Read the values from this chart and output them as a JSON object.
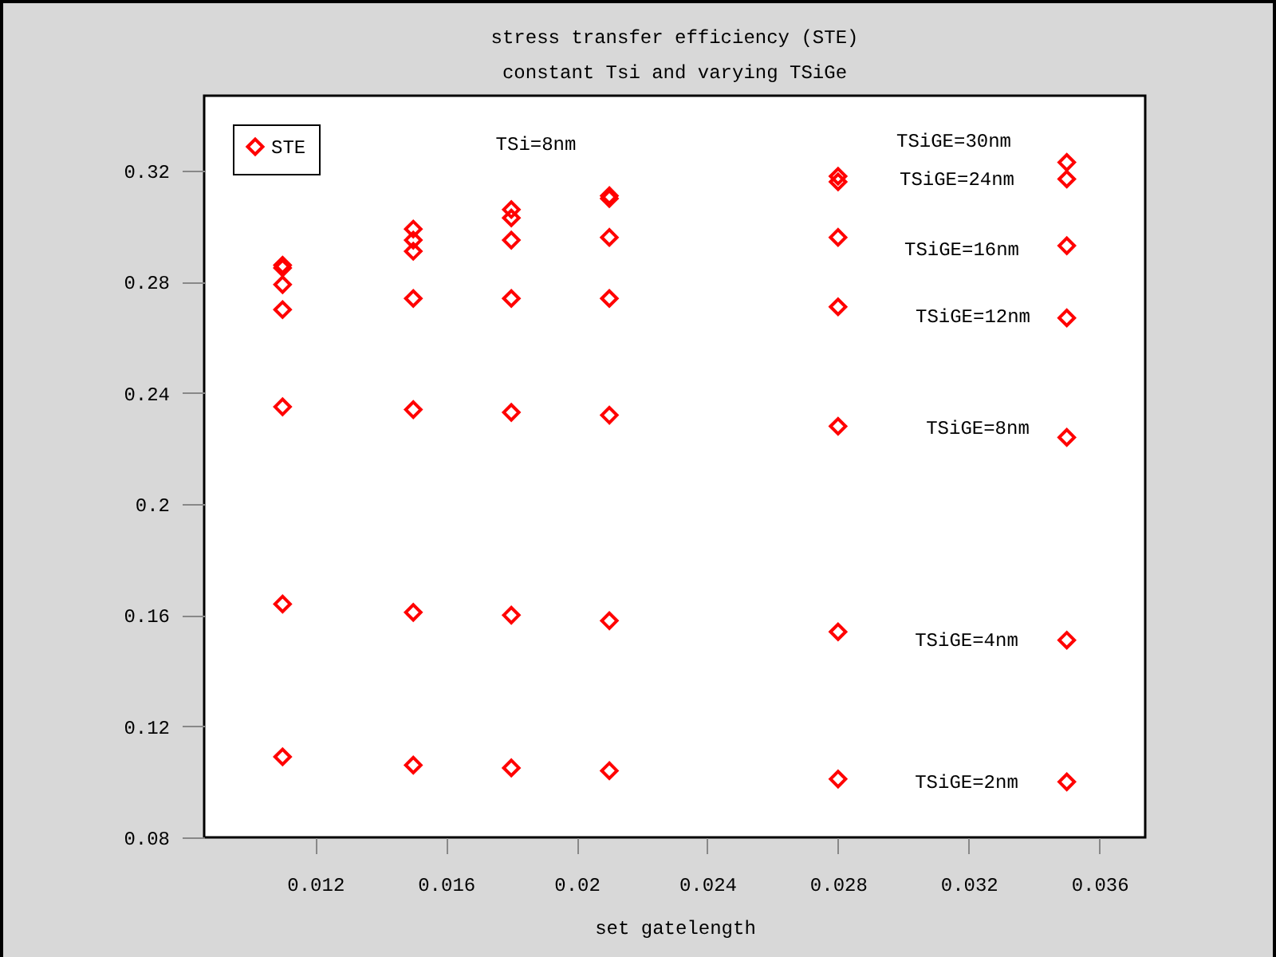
{
  "chart_data": {
    "type": "scatter",
    "title": "stress transfer  efficiency (STE)",
    "subtitle": "constant Tsi and varying TSiGe",
    "xlabel": "set gatelength",
    "x": [
      0.011,
      0.011,
      0.011,
      0.011,
      0.011,
      0.011,
      0.011,
      0.015,
      0.015,
      0.015,
      0.015,
      0.015,
      0.015,
      0.015,
      0.018,
      0.018,
      0.018,
      0.018,
      0.018,
      0.018,
      0.018,
      0.021,
      0.021,
      0.021,
      0.021,
      0.021,
      0.021,
      0.021,
      0.028,
      0.028,
      0.028,
      0.028,
      0.028,
      0.028,
      0.028,
      0.035,
      0.035,
      0.035,
      0.035,
      0.035,
      0.035,
      0.035
    ],
    "series": [
      {
        "name": "STE",
        "color": "#ff0000",
        "values": [
          0.286,
          0.285,
          0.279,
          0.27,
          0.235,
          0.164,
          0.109,
          0.299,
          0.295,
          0.291,
          0.274,
          0.234,
          0.161,
          0.106,
          0.306,
          0.303,
          0.295,
          0.274,
          0.233,
          0.16,
          0.105,
          0.311,
          0.31,
          0.296,
          0.274,
          0.232,
          0.158,
          0.104,
          0.318,
          0.316,
          0.296,
          0.271,
          0.228,
          0.154,
          0.101,
          0.323,
          0.317,
          0.293,
          0.267,
          0.224,
          0.151,
          0.1
        ]
      }
    ],
    "xlim": [
      0.0086,
      0.0374
    ],
    "ylim": [
      0.08,
      0.347
    ],
    "xticks": [
      0.012,
      0.016,
      0.02,
      0.024,
      0.028,
      0.032,
      0.036
    ],
    "yticks": [
      0.08,
      0.12,
      0.16,
      0.2,
      0.24,
      0.28,
      0.32
    ],
    "marker": "diamond",
    "legend": "top left",
    "annotations": [
      "TSi=8nm",
      "TSiGE=30nm",
      "TSiGE=24nm",
      "TSiGE=16nm",
      "TSiGE=12nm",
      "TSiGE=8nm",
      "TSiGE=4nm",
      "TSiGE=2nm"
    ]
  }
}
